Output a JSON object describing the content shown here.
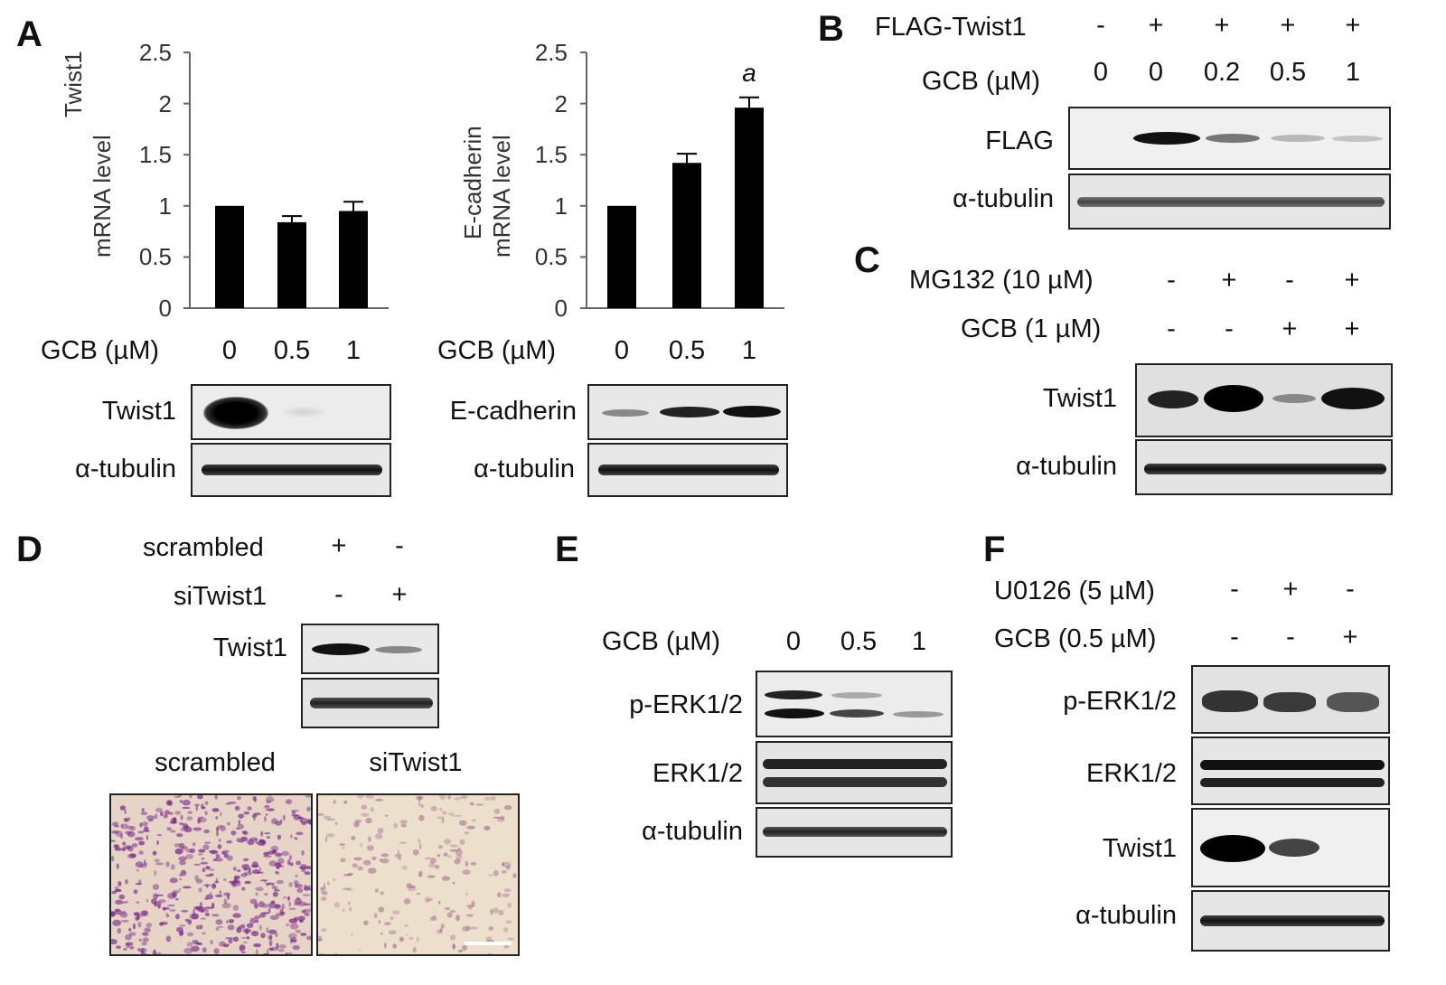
{
  "panels": {
    "A": {
      "letter": "A",
      "gcb_label": "GCB (µM)",
      "doses": [
        "0",
        "0.5",
        "1"
      ],
      "charts": [
        {
          "ylabel_line1": "Twist1",
          "ylabel_line2": "mRNA level",
          "ticks": [
            "0",
            "0.5",
            "1",
            "1.5",
            "2",
            "2.5"
          ],
          "annotation": ""
        },
        {
          "ylabel_line1": "E-cadherin",
          "ylabel_line2": "mRNA level",
          "ticks": [
            "0",
            "0.5",
            "1",
            "1.5",
            "2",
            "2.5"
          ],
          "annotation": "a"
        }
      ],
      "blot_labels_left": [
        "Twist1",
        "α-tubulin"
      ],
      "blot_labels_right": [
        "E-cadherin",
        "α-tubulin"
      ]
    },
    "B": {
      "letter": "B",
      "row1_label": "FLAG-Twist1",
      "row1_values": [
        "-",
        "+",
        "+",
        "+",
        "+"
      ],
      "row2_label": "GCB (µM)",
      "row2_values": [
        "0",
        "0",
        "0.2",
        "0.5",
        "1"
      ],
      "blot_labels": [
        "FLAG",
        "α-tubulin"
      ]
    },
    "C": {
      "letter": "C",
      "row1_label": "MG132 (10 µM)",
      "row1_values": [
        "-",
        "+",
        "-",
        "+"
      ],
      "row2_label": "GCB (1 µM)",
      "row2_values": [
        "-",
        "-",
        "+",
        "+"
      ],
      "blot_labels": [
        "Twist1",
        "α-tubulin"
      ]
    },
    "D": {
      "letter": "D",
      "row1_label": "scrambled",
      "row1_values": [
        "+",
        "-"
      ],
      "row2_label": "siTwist1",
      "row2_values": [
        "-",
        "+"
      ],
      "blot_labels": [
        "Twist1"
      ],
      "image_labels": [
        "scrambled",
        "siTwist1"
      ]
    },
    "E": {
      "letter": "E",
      "gcb_label": "GCB (µM)",
      "doses": [
        "0",
        "0.5",
        "1"
      ],
      "blot_labels": [
        "p-ERK1/2",
        "ERK1/2",
        "α-tubulin"
      ]
    },
    "F": {
      "letter": "F",
      "row1_label": "U0126 (5 µM)",
      "row1_values": [
        "-",
        "+",
        "-"
      ],
      "row2_label": "GCB (0.5 µM)",
      "row2_values": [
        "-",
        "-",
        "+"
      ],
      "blot_labels": [
        "p-ERK1/2",
        "ERK1/2",
        "Twist1",
        "α-tubulin"
      ]
    }
  },
  "chart_data": [
    {
      "type": "bar",
      "categories": [
        "0",
        "0.5",
        "1"
      ],
      "values": [
        1.0,
        0.84,
        0.95
      ],
      "errors": [
        0.0,
        0.06,
        0.09
      ],
      "ylim": [
        0,
        2.5
      ],
      "ylabel": "Twist1 mRNA level",
      "xlabel": "GCB (µM)",
      "bar_color": "#000000"
    },
    {
      "type": "bar",
      "categories": [
        "0",
        "0.5",
        "1"
      ],
      "values": [
        1.0,
        1.42,
        1.96
      ],
      "errors": [
        0.0,
        0.09,
        0.1
      ],
      "ylim": [
        0,
        2.5
      ],
      "ylabel": "E-cadherin mRNA level",
      "xlabel": "GCB (µM)",
      "annotations": [
        {
          "category": "1",
          "text": "a"
        }
      ],
      "bar_color": "#000000"
    }
  ]
}
